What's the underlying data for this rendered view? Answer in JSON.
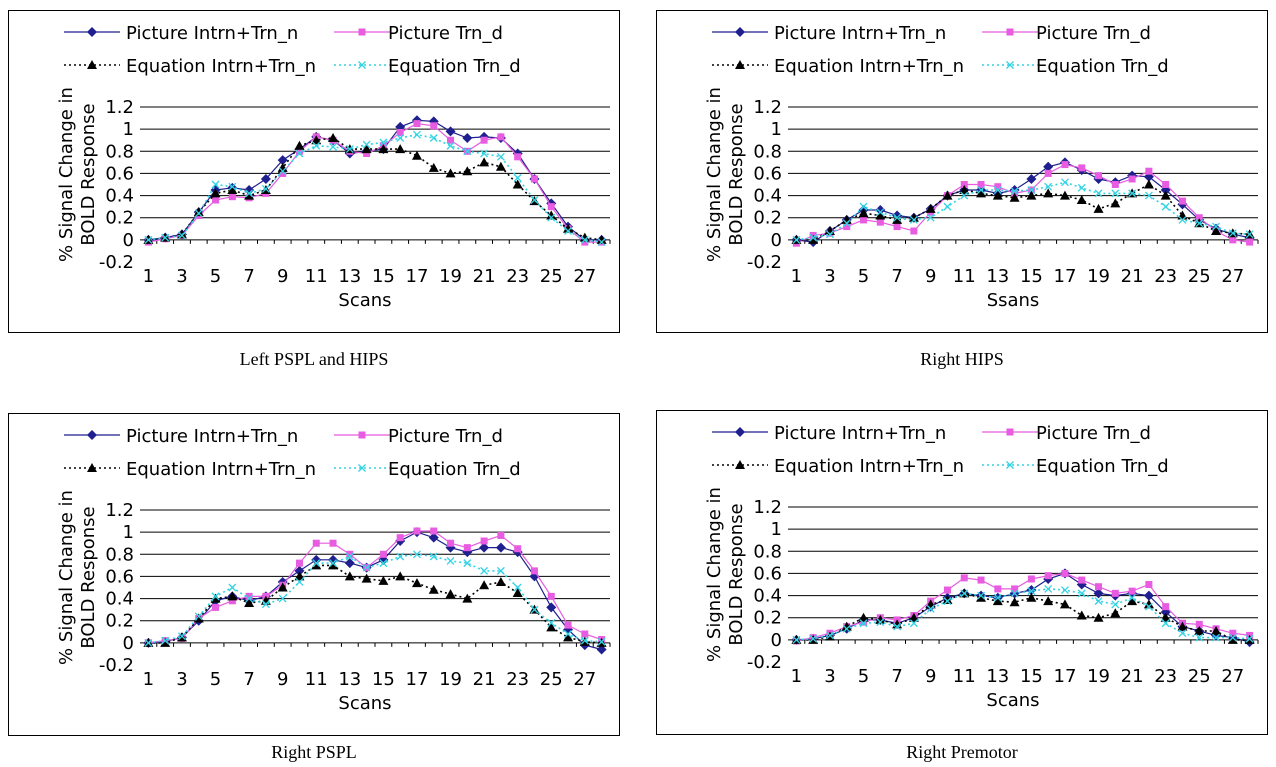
{
  "legend": {
    "picture_intrn": "Picture Intrn+Trn_n",
    "picture_trn": "Picture Trn_d",
    "equation_intrn": "Equation Intrn+Trn_n",
    "equation_trn": "Equation Trn_d"
  },
  "colors": {
    "picture_intrn": "#1f1f8f",
    "picture_trn": "#e75ce0",
    "equation_intrn": "#000000",
    "equation_trn": "#33d3e3",
    "grid": "#000000",
    "frame": "#000000"
  },
  "chart_data": [
    {
      "type": "line",
      "caption": "Left PSPL and HIPS",
      "xlabel": "Scans",
      "ylabel": "% Signal Change in BOLD Response",
      "ylim": [
        -0.2,
        1.2
      ],
      "yticks": [
        "-0.2",
        "0",
        "0.2",
        "0.4",
        "0.6",
        "0.8",
        "1",
        "1.2"
      ],
      "xticks": [
        "1",
        "3",
        "5",
        "7",
        "9",
        "11",
        "13",
        "15",
        "17",
        "19",
        "21",
        "23",
        "25",
        "27"
      ],
      "x": [
        1,
        2,
        3,
        4,
        5,
        6,
        7,
        8,
        9,
        10,
        11,
        12,
        13,
        14,
        15,
        16,
        17,
        18,
        19,
        20,
        21,
        22,
        23,
        24,
        25,
        26,
        27,
        28
      ],
      "series": [
        {
          "name": "Picture Intrn+Trn_n",
          "values": [
            0,
            0.02,
            0.05,
            0.25,
            0.45,
            0.47,
            0.45,
            0.55,
            0.72,
            0.82,
            0.93,
            0.9,
            0.78,
            0.8,
            0.82,
            1.02,
            1.08,
            1.07,
            0.98,
            0.92,
            0.93,
            0.92,
            0.78,
            0.55,
            0.33,
            0.12,
            0,
            0
          ]
        },
        {
          "name": "Picture Trn_d",
          "values": [
            -0.02,
            0.01,
            0.04,
            0.22,
            0.36,
            0.39,
            0.38,
            0.42,
            0.6,
            0.8,
            0.93,
            0.9,
            0.8,
            0.78,
            0.85,
            0.97,
            1.05,
            1.03,
            0.9,
            0.8,
            0.9,
            0.93,
            0.75,
            0.55,
            0.3,
            0.1,
            -0.02,
            -0.02
          ]
        },
        {
          "name": "Equation Intrn+Trn_n",
          "values": [
            0,
            0.02,
            0.05,
            0.25,
            0.42,
            0.45,
            0.4,
            0.45,
            0.65,
            0.85,
            0.9,
            0.92,
            0.82,
            0.82,
            0.82,
            0.82,
            0.76,
            0.65,
            0.6,
            0.62,
            0.7,
            0.66,
            0.5,
            0.35,
            0.22,
            0.1,
            0.02,
            0
          ]
        },
        {
          "name": "Equation Trn_d",
          "values": [
            0,
            0.02,
            0.04,
            0.24,
            0.5,
            0.48,
            0.42,
            0.46,
            0.62,
            0.78,
            0.85,
            0.84,
            0.82,
            0.86,
            0.88,
            0.92,
            0.95,
            0.92,
            0.85,
            0.8,
            0.78,
            0.75,
            0.56,
            0.36,
            0.2,
            0.08,
            0,
            -0.02
          ]
        }
      ]
    },
    {
      "type": "line",
      "caption": "Right HIPS",
      "xlabel": "Ssans",
      "ylabel": "% Signal Change in BOLD Response",
      "ylim": [
        -0.2,
        1.2
      ],
      "yticks": [
        "-0.2",
        "0",
        "0.2",
        "0.4",
        "0.6",
        "0.8",
        "1",
        "1.2"
      ],
      "xticks": [
        "1",
        "3",
        "5",
        "7",
        "9",
        "11",
        "13",
        "15",
        "17",
        "19",
        "21",
        "23",
        "25",
        "27"
      ],
      "x": [
        1,
        2,
        3,
        4,
        5,
        6,
        7,
        8,
        9,
        10,
        11,
        12,
        13,
        14,
        15,
        16,
        17,
        18,
        19,
        20,
        21,
        22,
        23,
        24,
        25,
        26,
        27,
        28
      ],
      "series": [
        {
          "name": "Picture Intrn+Trn_n",
          "values": [
            0,
            -0.02,
            0.08,
            0.18,
            0.27,
            0.27,
            0.22,
            0.2,
            0.28,
            0.4,
            0.45,
            0.45,
            0.42,
            0.45,
            0.55,
            0.66,
            0.7,
            0.63,
            0.55,
            0.52,
            0.58,
            0.57,
            0.45,
            0.32,
            0.18,
            0.1,
            0.05,
            0.02
          ]
        },
        {
          "name": "Picture Trn_d",
          "values": [
            -0.03,
            0.04,
            0.06,
            0.12,
            0.18,
            0.16,
            0.12,
            0.08,
            0.25,
            0.4,
            0.5,
            0.5,
            0.48,
            0.42,
            0.45,
            0.6,
            0.68,
            0.65,
            0.58,
            0.5,
            0.55,
            0.62,
            0.5,
            0.35,
            0.2,
            0.08,
            0,
            -0.02
          ]
        },
        {
          "name": "Equation Intrn+Trn_n",
          "values": [
            0,
            0,
            0.08,
            0.18,
            0.24,
            0.22,
            0.18,
            0.2,
            0.28,
            0.4,
            0.45,
            0.42,
            0.4,
            0.38,
            0.4,
            0.42,
            0.4,
            0.36,
            0.28,
            0.33,
            0.42,
            0.5,
            0.4,
            0.22,
            0.15,
            0.08,
            0.06,
            0.05
          ]
        },
        {
          "name": "Equation Trn_d",
          "values": [
            0,
            0.02,
            0.05,
            0.15,
            0.3,
            0.25,
            0.2,
            0.18,
            0.2,
            0.3,
            0.4,
            0.45,
            0.45,
            0.44,
            0.45,
            0.48,
            0.52,
            0.47,
            0.42,
            0.42,
            0.42,
            0.4,
            0.3,
            0.18,
            0.15,
            0.12,
            0.06,
            0.05
          ]
        }
      ]
    },
    {
      "type": "line",
      "caption": "Right PSPL",
      "xlabel": "Scans",
      "ylabel": "% Signal Change in BOLD Response",
      "ylim": [
        -0.2,
        1.2
      ],
      "yticks": [
        "-0.2",
        "0",
        "0.2",
        "0.4",
        "0.6",
        "0.8",
        "1",
        "1.2"
      ],
      "xticks": [
        "1",
        "3",
        "5",
        "7",
        "9",
        "11",
        "13",
        "15",
        "17",
        "19",
        "21",
        "23",
        "25",
        "27"
      ],
      "x": [
        1,
        2,
        3,
        4,
        5,
        6,
        7,
        8,
        9,
        10,
        11,
        12,
        13,
        14,
        15,
        16,
        17,
        18,
        19,
        20,
        21,
        22,
        23,
        24,
        25,
        26,
        27,
        28
      ],
      "series": [
        {
          "name": "Picture Intrn+Trn_n",
          "values": [
            0,
            0.01,
            0.05,
            0.2,
            0.38,
            0.42,
            0.38,
            0.42,
            0.55,
            0.65,
            0.75,
            0.75,
            0.72,
            0.68,
            0.75,
            0.92,
            1,
            0.95,
            0.86,
            0.82,
            0.86,
            0.86,
            0.82,
            0.6,
            0.32,
            0.12,
            -0.02,
            -0.06
          ]
        },
        {
          "name": "Picture Trn_d",
          "values": [
            0,
            0.02,
            0.04,
            0.22,
            0.32,
            0.38,
            0.42,
            0.42,
            0.52,
            0.72,
            0.9,
            0.9,
            0.8,
            0.68,
            0.8,
            0.95,
            1.01,
            1.01,
            0.9,
            0.86,
            0.92,
            0.97,
            0.85,
            0.65,
            0.42,
            0.16,
            0.08,
            0.03
          ]
        },
        {
          "name": "Equation Intrn+Trn_n",
          "values": [
            0,
            0,
            0.05,
            0.22,
            0.4,
            0.42,
            0.36,
            0.38,
            0.5,
            0.6,
            0.7,
            0.7,
            0.6,
            0.58,
            0.56,
            0.6,
            0.54,
            0.48,
            0.44,
            0.4,
            0.52,
            0.55,
            0.45,
            0.3,
            0.14,
            0.05,
            0.01,
            0
          ]
        },
        {
          "name": "Equation Trn_d",
          "values": [
            0,
            0.02,
            0.06,
            0.24,
            0.42,
            0.5,
            0.4,
            0.35,
            0.4,
            0.55,
            0.72,
            0.72,
            0.78,
            0.68,
            0.72,
            0.78,
            0.8,
            0.78,
            0.74,
            0.72,
            0.65,
            0.65,
            0.5,
            0.3,
            0.18,
            0.08,
            0.02,
            0.01
          ]
        }
      ]
    },
    {
      "type": "line",
      "caption": "Right Premotor",
      "xlabel": "Scans",
      "ylabel": "% Signal Change in BOLD Response",
      "ylim": [
        -0.2,
        1.2
      ],
      "yticks": [
        "-0.2",
        "0",
        "0.2",
        "0.4",
        "0.6",
        "0.8",
        "1",
        "1.2"
      ],
      "xticks": [
        "1",
        "3",
        "5",
        "7",
        "9",
        "11",
        "13",
        "15",
        "17",
        "19",
        "21",
        "23",
        "25",
        "27"
      ],
      "x": [
        1,
        2,
        3,
        4,
        5,
        6,
        7,
        8,
        9,
        10,
        11,
        12,
        13,
        14,
        15,
        16,
        17,
        18,
        19,
        20,
        21,
        22,
        23,
        24,
        25,
        26,
        27,
        28
      ],
      "series": [
        {
          "name": "Picture Intrn+Trn_n",
          "values": [
            0,
            0.01,
            0.04,
            0.1,
            0.18,
            0.18,
            0.15,
            0.2,
            0.3,
            0.38,
            0.42,
            0.4,
            0.38,
            0.42,
            0.45,
            0.55,
            0.6,
            0.5,
            0.42,
            0.4,
            0.42,
            0.4,
            0.25,
            0.12,
            0.08,
            0.04,
            0.02,
            -0.02
          ]
        },
        {
          "name": "Picture Trn_d",
          "values": [
            -0.01,
            0.02,
            0.06,
            0.12,
            0.16,
            0.2,
            0.18,
            0.22,
            0.35,
            0.45,
            0.56,
            0.54,
            0.46,
            0.46,
            0.55,
            0.58,
            0.6,
            0.54,
            0.48,
            0.42,
            0.44,
            0.5,
            0.3,
            0.15,
            0.14,
            0.1,
            0.06,
            0.04
          ]
        },
        {
          "name": "Equation Intrn+Trn_n",
          "values": [
            0,
            0,
            0.03,
            0.12,
            0.2,
            0.18,
            0.14,
            0.2,
            0.32,
            0.36,
            0.42,
            0.38,
            0.35,
            0.34,
            0.38,
            0.35,
            0.32,
            0.22,
            0.2,
            0.24,
            0.35,
            0.32,
            0.2,
            0.12,
            0.08,
            0.08,
            0,
            0
          ]
        },
        {
          "name": "Equation Trn_d",
          "values": [
            0,
            0.01,
            0.04,
            0.1,
            0.15,
            0.16,
            0.12,
            0.15,
            0.28,
            0.35,
            0.42,
            0.4,
            0.38,
            0.42,
            0.44,
            0.46,
            0.45,
            0.42,
            0.35,
            0.32,
            0.38,
            0.3,
            0.15,
            0.06,
            0.02,
            0.02,
            0.02,
            0.01
          ]
        }
      ]
    }
  ]
}
